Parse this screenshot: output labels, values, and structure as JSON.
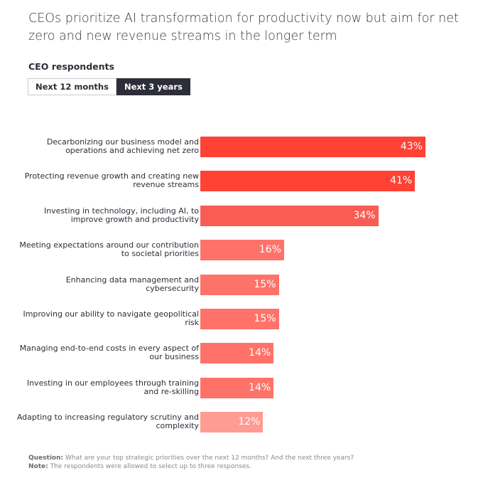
{
  "title": "CEOs prioritize AI transformation for productivity now but aim for net zero and new revenue streams in the longer term",
  "subtitle": "CEO respondents",
  "tabs": [
    {
      "label": "Next 12 months",
      "active": false
    },
    {
      "label": "Next 3 years",
      "active": true
    }
  ],
  "chart_data": {
    "type": "bar",
    "orientation": "horizontal",
    "categories": [
      "Decarbonizing our business model and operations and achieving net zero",
      "Protecting revenue growth and creating new revenue streams",
      "Investing in technology, including AI, to improve growth and productivity",
      "Meeting expectations around our contribution to societal priorities",
      "Enhancing data management and cybersecurity",
      "Improving our ability to navigate geopolitical risk",
      "Managing end-to-end costs in every aspect of our business",
      "Investing in our employees through training and re-skilling",
      "Adapting to increasing regulatory scrutiny and complexity"
    ],
    "values": [
      43,
      41,
      34,
      16,
      15,
      15,
      14,
      14,
      12
    ],
    "labels": [
      "43%",
      "41%",
      "34%",
      "16%",
      "15%",
      "15%",
      "14%",
      "14%",
      "12%"
    ],
    "colors": [
      "#ff4136",
      "#ff4136",
      "#f95c53",
      "#ff7269",
      "#ff7269",
      "#ff7269",
      "#ff7269",
      "#ff7269",
      "#ff9b92"
    ],
    "grid": false
  },
  "footer": {
    "question_label": "Question:",
    "question": " What are your top strategic priorities over the next 12 months? And the next three years?",
    "note_label": "Note:",
    "note": " The respondents were allowed to select up to three responses."
  }
}
